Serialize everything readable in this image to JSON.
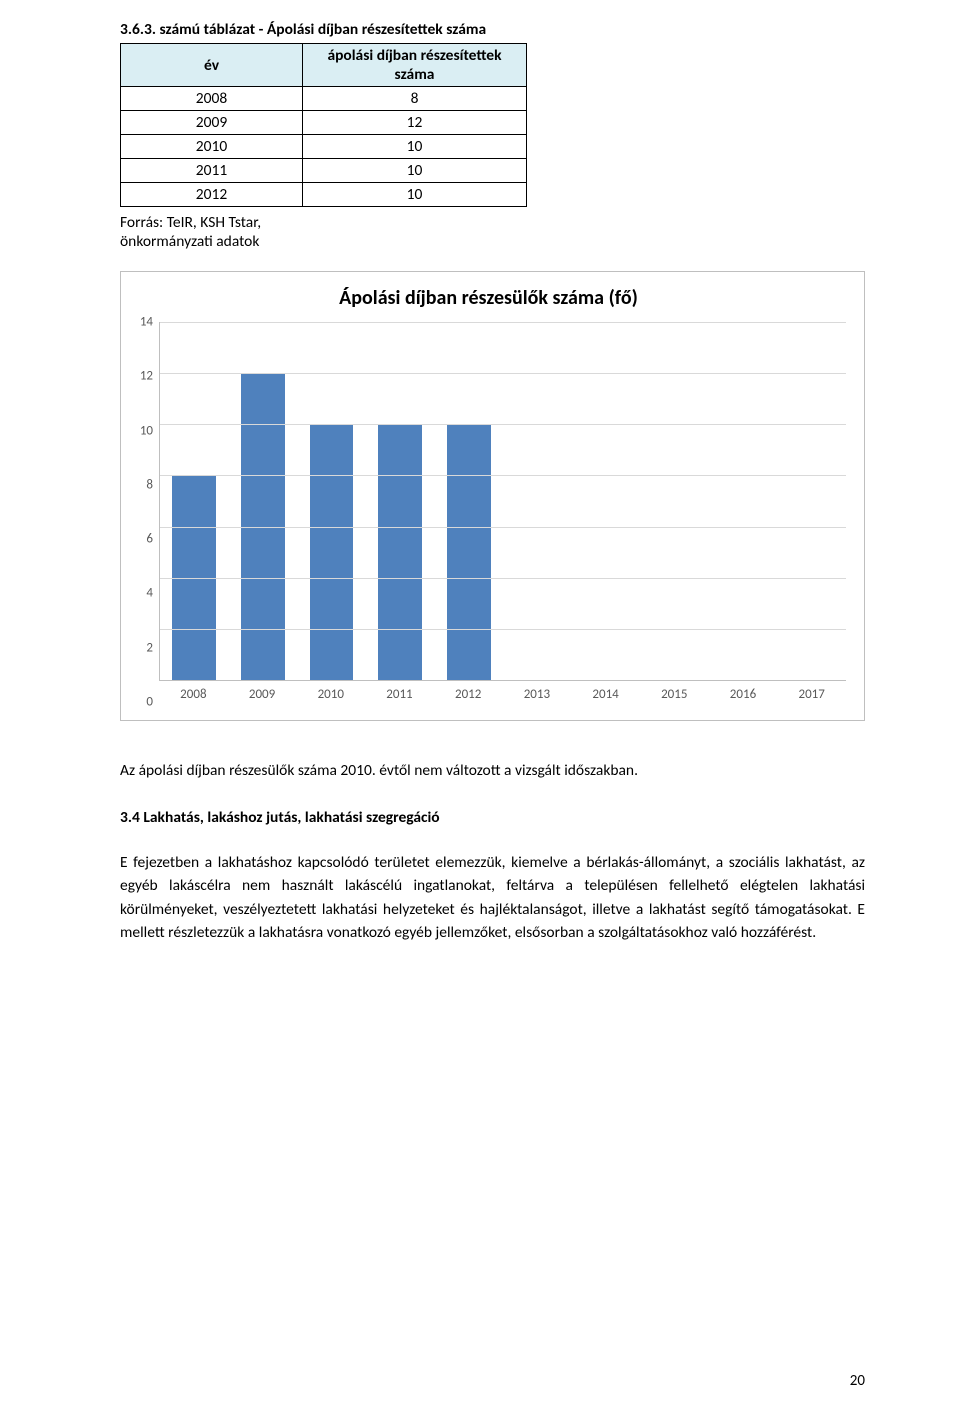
{
  "tableTitle": "3.6.3. számú táblázat - Ápolási díjban részesítettek száma",
  "table": {
    "head": {
      "c1": "év",
      "c2": "ápolási díjban részesítettek száma"
    },
    "rows": [
      {
        "c1": "2008",
        "c2": "8"
      },
      {
        "c1": "2009",
        "c2": "12"
      },
      {
        "c1": "2010",
        "c2": "10"
      },
      {
        "c1": "2011",
        "c2": "10"
      },
      {
        "c1": "2012",
        "c2": "10"
      }
    ]
  },
  "source": "Forrás: TeIR, KSH Tstar, önkormányzati adatok",
  "chart": {
    "title": "Ápolási díjban részesülők száma (fő)",
    "ymax": 14,
    "ystep": 2,
    "categories": [
      "2008",
      "2009",
      "2010",
      "2011",
      "2012",
      "2013",
      "2014",
      "2015",
      "2016",
      "2017"
    ],
    "values": [
      8,
      12,
      10,
      10,
      10,
      0,
      0,
      0,
      0,
      0
    ],
    "barColor": "#4f81bd",
    "gridColor": "#d9d9d9",
    "axisColor": "#bfbfbf",
    "tickColor": "#595959"
  },
  "afterChart": "Az ápolási díjban részesülők száma 2010. évtől nem változott a vizsgált időszakban.",
  "heading": "3.4 Lakhatás, lakáshoz jutás, lakhatási szegregáció",
  "body": "E fejezetben a lakhatáshoz kapcsolódó területet elemezzük, kiemelve a bérlakás-állományt, a szociális lakhatást, az egyéb lakáscélra nem használt lakáscélú ingatlanokat, feltárva a településen fellelhető elégtelen lakhatási körülményeket, veszélyeztetett lakhatási helyzeteket és hajléktalanságot, illetve a lakhatást segítő támogatásokat. E mellett részletezzük a lakhatásra vonatkozó egyéb jellemzőket, elsősorban a szolgáltatásokhoz való hozzáférést.",
  "pageNum": "20"
}
